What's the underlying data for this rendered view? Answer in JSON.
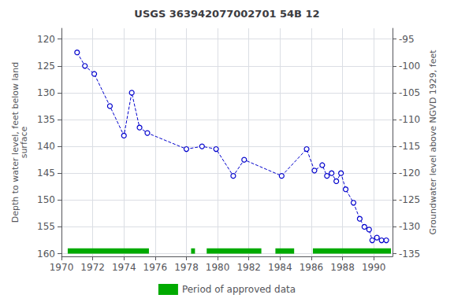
{
  "chart_data": {
    "type": "line",
    "title": "USGS 363942077002701 54B 12",
    "ylabel": "Depth to water level, feet below land\nsurface",
    "y2label": "Groundwater level above NGVD 1929, feet",
    "xlim": [
      1970.0,
      1991.2
    ],
    "xticks": [
      1970,
      1972,
      1974,
      1976,
      1978,
      1980,
      1982,
      1984,
      1986,
      1988,
      1990
    ],
    "ylim": [
      160.5,
      118.0
    ],
    "yticks": [
      120,
      125,
      130,
      135,
      140,
      145,
      150,
      155,
      160
    ],
    "y2lim": [
      -135.5,
      -93.0
    ],
    "y2ticks": [
      -95,
      -100,
      -105,
      -110,
      -115,
      -120,
      -125,
      -130,
      -135
    ],
    "grid": true,
    "legend": "bottom",
    "series": [
      {
        "type": "line",
        "color": "#0000cc",
        "marker": "circle",
        "line_style": "dashed",
        "x": [
          1971.0,
          1971.5,
          1972.1,
          1973.1,
          1974.0,
          1974.5,
          1975.0,
          1975.5,
          1978.0,
          1979.0,
          1979.9,
          1981.0,
          1981.7,
          1984.1,
          1985.7,
          1986.2,
          1986.7,
          1987.0,
          1987.3,
          1987.6,
          1987.9,
          1988.2,
          1988.7,
          1989.1,
          1989.4,
          1989.7,
          1989.9,
          1990.2,
          1990.5,
          1990.8
        ],
        "values": [
          122.5,
          125.0,
          126.5,
          132.5,
          138.0,
          130.0,
          136.5,
          137.5,
          140.5,
          140.0,
          140.5,
          145.5,
          142.5,
          145.5,
          140.5,
          144.5,
          143.5,
          145.5,
          145.0,
          146.5,
          145.0,
          148.0,
          150.5,
          153.5,
          155.0,
          155.5,
          157.5,
          157.0,
          157.5,
          157.5
        ]
      },
      {
        "type": "bar",
        "orientation": "horizontal",
        "name": "Period of approved data",
        "color": "#00aa00",
        "x": [
          [
            1970.4,
            1975.6
          ],
          [
            1978.3,
            1978.55
          ],
          [
            1979.3,
            1982.8
          ],
          [
            1983.7,
            1984.9
          ],
          [
            1986.1,
            1991.1
          ]
        ],
        "values": [
          [
            159.0,
            160.0
          ],
          [
            159.0,
            160.0
          ],
          [
            159.0,
            160.0
          ],
          [
            159.0,
            160.0
          ],
          [
            159.0,
            160.0
          ]
        ]
      }
    ]
  }
}
